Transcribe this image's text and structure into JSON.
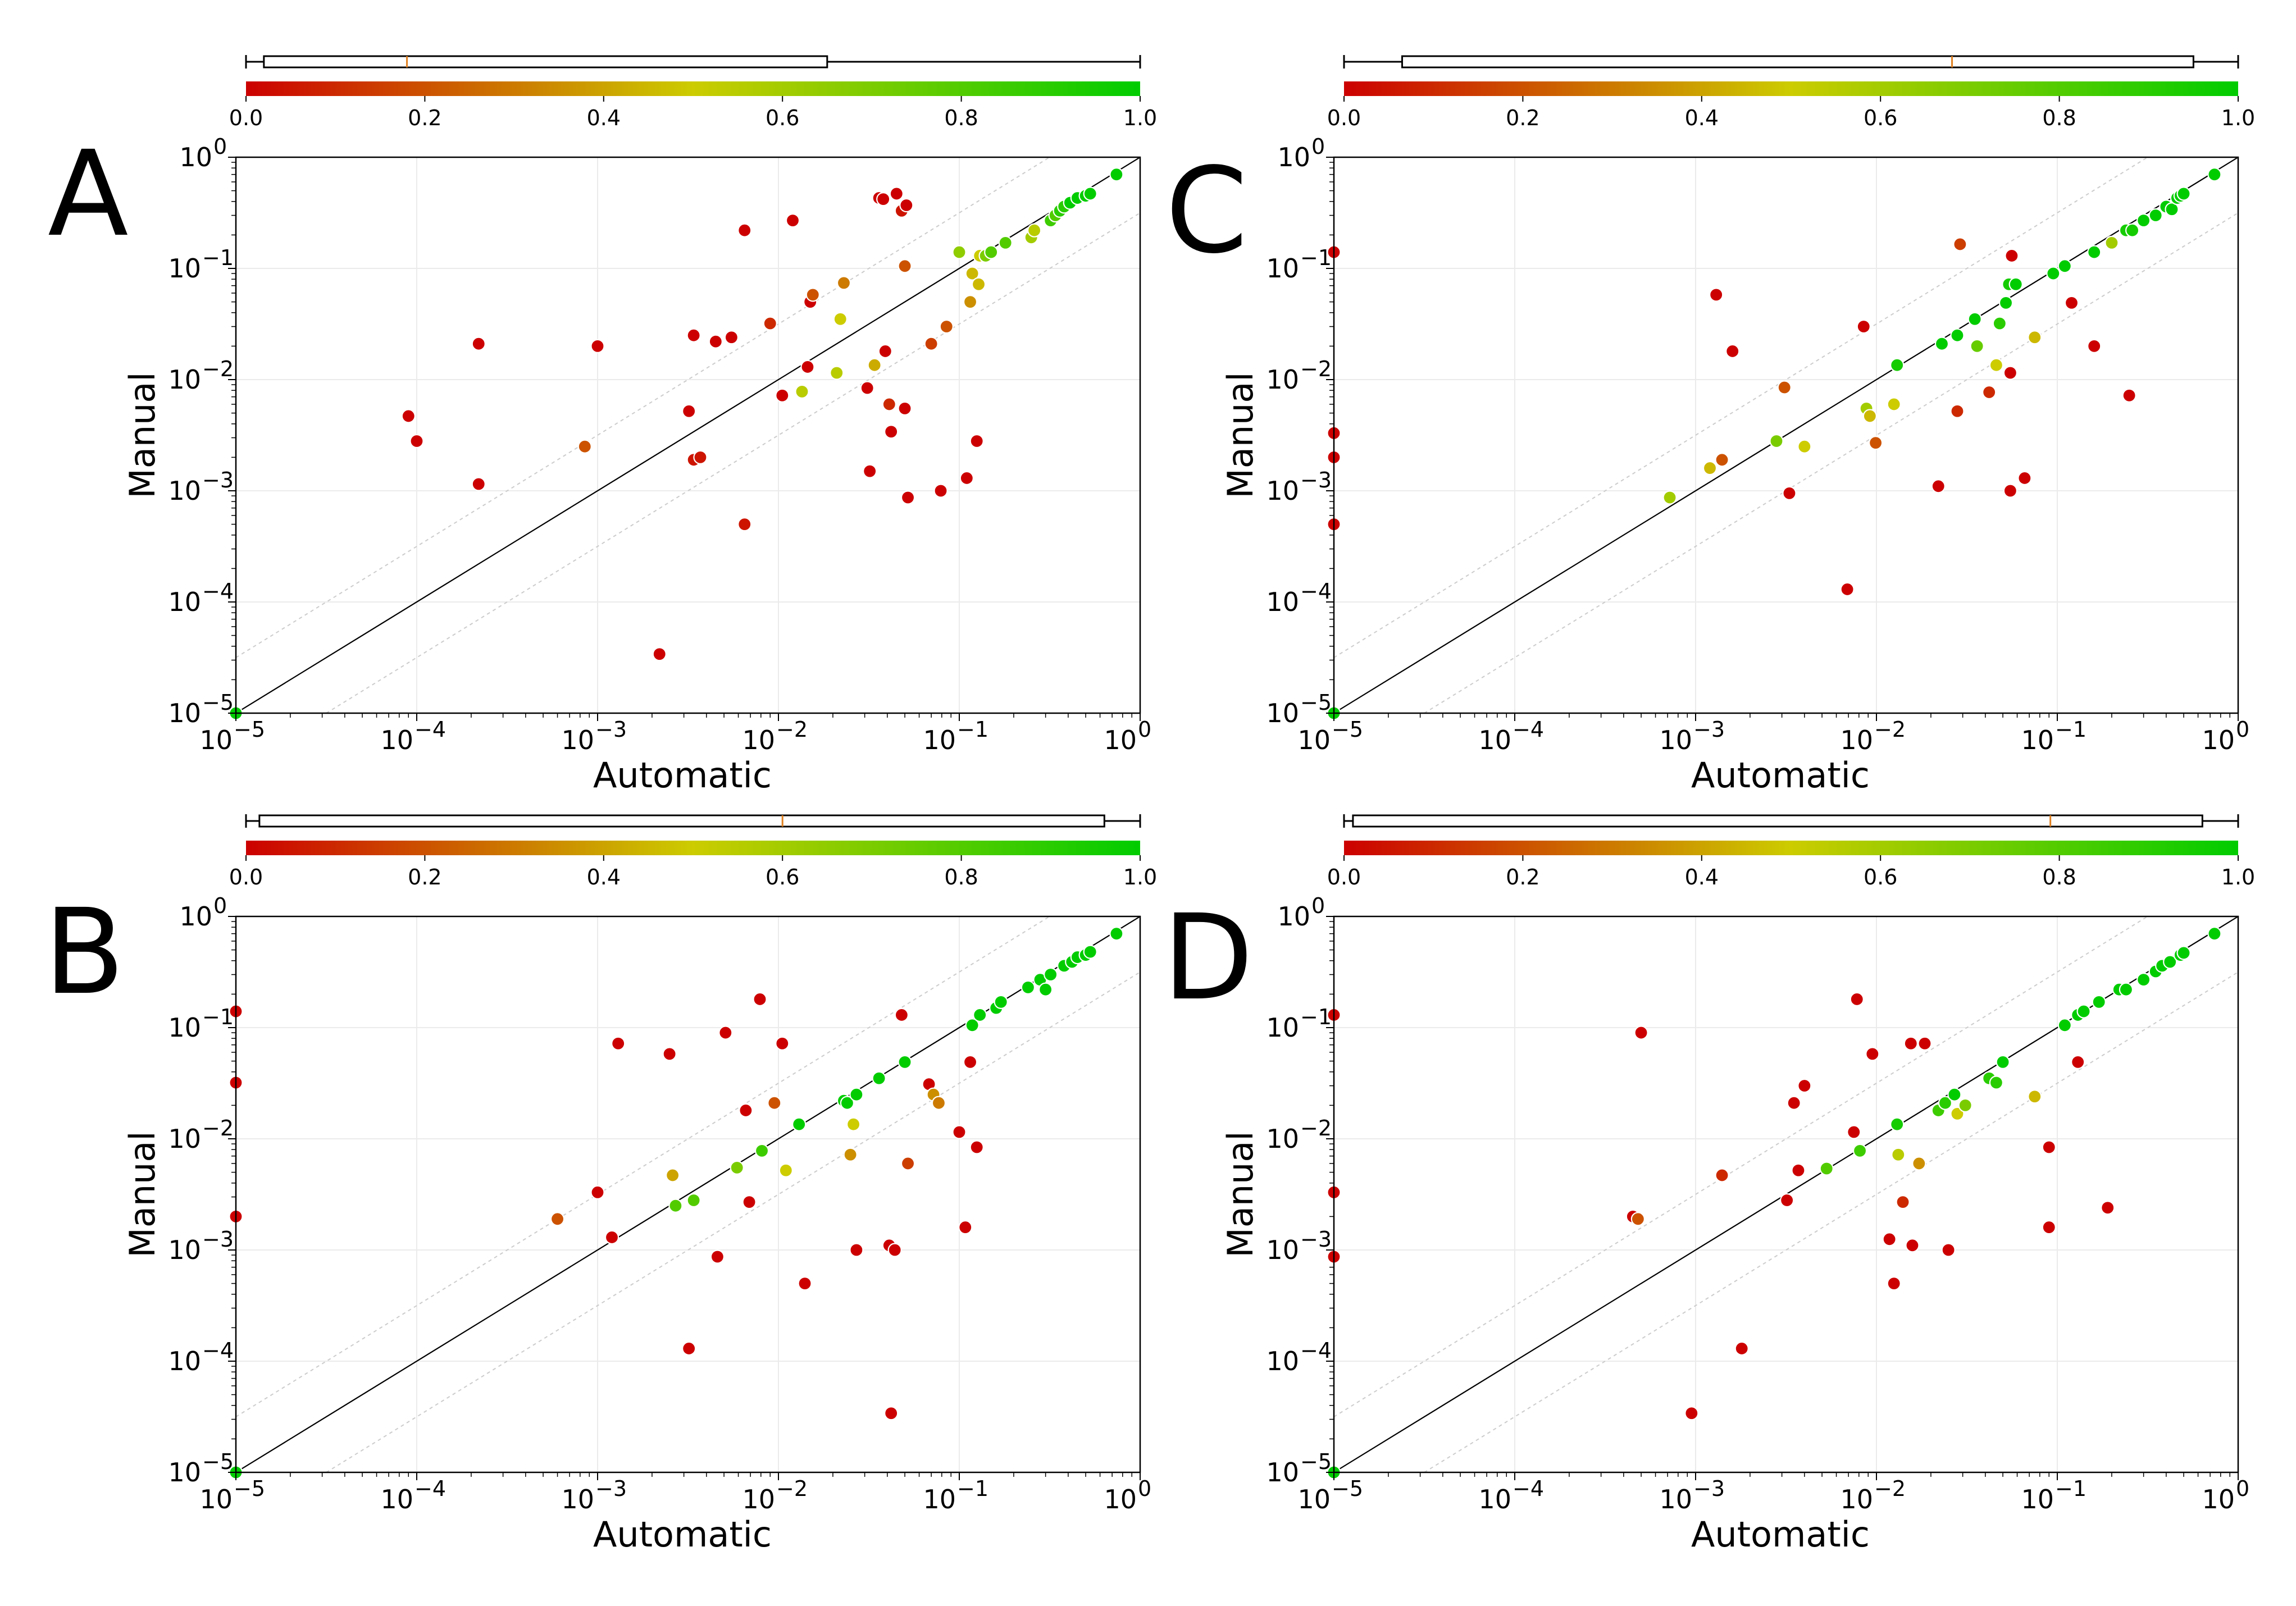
{
  "figure": {
    "xlabel": "Automatic",
    "ylabel": "Manual",
    "colorbar_ticks": [
      "0.0",
      "0.2",
      "0.4",
      "0.6",
      "0.8",
      "1.0"
    ],
    "axis_tick_labels": [
      "10",
      "10",
      "10",
      "10",
      "10",
      "10"
    ],
    "axis_tick_exponents": [
      "−5",
      "−4",
      "−3",
      "−2",
      "−1",
      "0"
    ],
    "colormap": [
      "#cc0000",
      "#cccc00",
      "#00cc00"
    ]
  },
  "chart_data": [
    {
      "panel": "A",
      "type": "scatter",
      "xlabel": "Automatic",
      "ylabel": "Manual",
      "xscale": "log",
      "yscale": "log",
      "xlim": [
        1e-05,
        1
      ],
      "ylim": [
        1e-05,
        1
      ],
      "reference_lines": [
        "y=x",
        "y=3.16x",
        "y=0.316x"
      ],
      "colorbar": {
        "range": [
          0,
          1
        ],
        "box": {
          "whisker_low": 0.0,
          "q1": 0.02,
          "median": 0.18,
          "q3": 0.65,
          "whisker_high": 1.0
        }
      },
      "points": [
        [
          1e-05,
          1e-05,
          1.0
        ],
        [
          9e-05,
          0.0047,
          0.0
        ],
        [
          0.0001,
          0.0028,
          0.0
        ],
        [
          0.00022,
          0.021,
          0.0
        ],
        [
          0.00022,
          0.00115,
          0.0
        ],
        [
          0.00085,
          0.0025,
          0.2
        ],
        [
          0.001,
          0.02,
          0.0
        ],
        [
          0.0032,
          0.0052,
          0.0
        ],
        [
          0.0034,
          0.025,
          0.0
        ],
        [
          0.0034,
          0.0019,
          0.05
        ],
        [
          0.0037,
          0.002,
          0.05
        ],
        [
          0.0045,
          0.022,
          0.0
        ],
        [
          0.0055,
          0.024,
          0.0
        ],
        [
          0.0065,
          0.22,
          0.0
        ],
        [
          0.0065,
          0.0005,
          0.05
        ],
        [
          0.0022,
          3.4e-05,
          0.0
        ],
        [
          0.009,
          0.032,
          0.1
        ],
        [
          0.0105,
          0.0072,
          0.0
        ],
        [
          0.012,
          0.27,
          0.0
        ],
        [
          0.0135,
          0.0078,
          0.55
        ],
        [
          0.0145,
          0.013,
          0.0
        ],
        [
          0.015,
          0.05,
          0.0
        ],
        [
          0.0155,
          0.058,
          0.2
        ],
        [
          0.021,
          0.0115,
          0.55
        ],
        [
          0.022,
          0.035,
          0.5
        ],
        [
          0.023,
          0.074,
          0.3
        ],
        [
          0.031,
          0.0084,
          0.0
        ],
        [
          0.032,
          0.0015,
          0.0
        ],
        [
          0.034,
          0.0135,
          0.42
        ],
        [
          0.036,
          0.43,
          0.0
        ],
        [
          0.038,
          0.42,
          0.0
        ],
        [
          0.039,
          0.018,
          0.0
        ],
        [
          0.041,
          0.006,
          0.1
        ],
        [
          0.042,
          0.0034,
          0.0
        ],
        [
          0.045,
          0.47,
          0.0
        ],
        [
          0.048,
          0.33,
          0.05
        ],
        [
          0.051,
          0.37,
          0.0
        ],
        [
          0.05,
          0.105,
          0.2
        ],
        [
          0.05,
          0.0055,
          0.0
        ],
        [
          0.052,
          0.00087,
          0.0
        ],
        [
          0.07,
          0.021,
          0.15
        ],
        [
          0.079,
          0.001,
          0.0
        ],
        [
          0.085,
          0.03,
          0.2
        ],
        [
          0.1,
          0.14,
          0.65
        ],
        [
          0.11,
          0.0013,
          0.0
        ],
        [
          0.115,
          0.05,
          0.35
        ],
        [
          0.118,
          0.09,
          0.45
        ],
        [
          0.125,
          0.0028,
          0.0
        ],
        [
          0.128,
          0.072,
          0.45
        ],
        [
          0.13,
          0.13,
          0.5
        ],
        [
          0.14,
          0.13,
          0.7
        ],
        [
          0.15,
          0.14,
          0.8
        ],
        [
          0.18,
          0.17,
          0.8
        ],
        [
          0.25,
          0.19,
          0.6
        ],
        [
          0.26,
          0.22,
          0.55
        ],
        [
          0.32,
          0.27,
          0.85
        ],
        [
          0.34,
          0.3,
          0.8
        ],
        [
          0.36,
          0.33,
          0.9
        ],
        [
          0.38,
          0.36,
          0.9
        ],
        [
          0.41,
          0.39,
          1.0
        ],
        [
          0.45,
          0.43,
          1.0
        ],
        [
          0.5,
          0.45,
          1.0
        ],
        [
          0.53,
          0.47,
          1.0
        ],
        [
          0.74,
          0.7,
          1.0
        ]
      ]
    },
    {
      "panel": "B",
      "type": "scatter",
      "xlabel": "Automatic",
      "ylabel": "Manual",
      "xscale": "log",
      "yscale": "log",
      "xlim": [
        1e-05,
        1
      ],
      "ylim": [
        1e-05,
        1
      ],
      "reference_lines": [
        "y=x",
        "y=3.16x",
        "y=0.316x"
      ],
      "colorbar": {
        "range": [
          0,
          1
        ],
        "box": {
          "whisker_low": 0.0,
          "q1": 0.015,
          "median": 0.6,
          "q3": 0.96,
          "whisker_high": 1.0
        }
      },
      "points": [
        [
          1e-05,
          1e-05,
          1.0
        ],
        [
          1e-05,
          0.14,
          0.0
        ],
        [
          1e-05,
          0.032,
          0.0
        ],
        [
          1e-05,
          0.002,
          0.0
        ],
        [
          0.0006,
          0.0019,
          0.2
        ],
        [
          0.001,
          0.0033,
          0.0
        ],
        [
          0.0012,
          0.0013,
          0.0
        ],
        [
          0.0013,
          0.072,
          0.0
        ],
        [
          0.0025,
          0.058,
          0.0
        ],
        [
          0.0026,
          0.0047,
          0.4
        ],
        [
          0.0027,
          0.0025,
          0.8
        ],
        [
          0.0032,
          0.00013,
          0.0
        ],
        [
          0.0034,
          0.0028,
          0.8
        ],
        [
          0.0046,
          0.00087,
          0.0
        ],
        [
          0.0051,
          0.09,
          0.0
        ],
        [
          0.0059,
          0.0055,
          0.7
        ],
        [
          0.0066,
          0.018,
          0.0
        ],
        [
          0.0069,
          0.0027,
          0.0
        ],
        [
          0.0079,
          0.18,
          0.0
        ],
        [
          0.0081,
          0.0078,
          0.85
        ],
        [
          0.0095,
          0.021,
          0.2
        ],
        [
          0.0105,
          0.072,
          0.0
        ],
        [
          0.011,
          0.0052,
          0.5
        ],
        [
          0.013,
          0.0135,
          1.0
        ],
        [
          0.014,
          0.0005,
          0.0
        ],
        [
          0.023,
          0.022,
          1.0
        ],
        [
          0.024,
          0.021,
          1.0
        ],
        [
          0.025,
          0.0072,
          0.35
        ],
        [
          0.026,
          0.0135,
          0.5
        ],
        [
          0.027,
          0.001,
          0.0
        ],
        [
          0.027,
          0.025,
          1.0
        ],
        [
          0.036,
          0.035,
          1.0
        ],
        [
          0.041,
          0.0011,
          0.0
        ],
        [
          0.042,
          3.4e-05,
          0.0
        ],
        [
          0.044,
          0.001,
          0.0
        ],
        [
          0.048,
          0.13,
          0.0
        ],
        [
          0.05,
          0.049,
          1.0
        ],
        [
          0.052,
          0.006,
          0.15
        ],
        [
          0.068,
          0.031,
          0.0
        ],
        [
          0.072,
          0.025,
          0.35
        ],
        [
          0.077,
          0.021,
          0.3
        ],
        [
          0.1,
          0.0115,
          0.0
        ],
        [
          0.108,
          0.0016,
          0.0
        ],
        [
          0.115,
          0.049,
          0.0
        ],
        [
          0.118,
          0.105,
          1.0
        ],
        [
          0.125,
          0.0084,
          0.0
        ],
        [
          0.13,
          0.13,
          1.0
        ],
        [
          0.16,
          0.15,
          1.0
        ],
        [
          0.17,
          0.17,
          1.0
        ],
        [
          0.24,
          0.23,
          1.0
        ],
        [
          0.28,
          0.27,
          1.0
        ],
        [
          0.3,
          0.22,
          1.0
        ],
        [
          0.32,
          0.3,
          1.0
        ],
        [
          0.38,
          0.36,
          1.0
        ],
        [
          0.42,
          0.39,
          1.0
        ],
        [
          0.45,
          0.43,
          1.0
        ],
        [
          0.5,
          0.45,
          1.0
        ],
        [
          0.53,
          0.48,
          1.0
        ],
        [
          0.74,
          0.7,
          1.0
        ]
      ]
    },
    {
      "panel": "C",
      "type": "scatter",
      "xlabel": "Automatic",
      "ylabel": "Manual",
      "xscale": "log",
      "yscale": "log",
      "xlim": [
        1e-05,
        1
      ],
      "ylim": [
        1e-05,
        1
      ],
      "reference_lines": [
        "y=x",
        "y=3.16x",
        "y=0.316x"
      ],
      "colorbar": {
        "range": [
          0,
          1
        ],
        "box": {
          "whisker_low": 0.0,
          "q1": 0.065,
          "median": 0.68,
          "q3": 0.95,
          "whisker_high": 1.0
        }
      },
      "points": [
        [
          1e-05,
          1e-05,
          1.0
        ],
        [
          1e-05,
          0.14,
          0.0
        ],
        [
          1e-05,
          0.0033,
          0.0
        ],
        [
          1e-05,
          0.002,
          0.0
        ],
        [
          1e-05,
          0.0005,
          0.0
        ],
        [
          0.00072,
          0.00087,
          0.6
        ],
        [
          0.0012,
          0.0016,
          0.45
        ],
        [
          0.0013,
          0.058,
          0.0
        ],
        [
          0.0014,
          0.0019,
          0.2
        ],
        [
          0.0016,
          0.018,
          0.0
        ],
        [
          0.0028,
          0.0028,
          0.7
        ],
        [
          0.0031,
          0.0085,
          0.2
        ],
        [
          0.0033,
          0.00095,
          0.0
        ],
        [
          0.004,
          0.0025,
          0.5
        ],
        [
          0.0069,
          0.00013,
          0.0
        ],
        [
          0.0085,
          0.03,
          0.0
        ],
        [
          0.0088,
          0.0055,
          0.6
        ],
        [
          0.0092,
          0.0047,
          0.45
        ],
        [
          0.0099,
          0.0027,
          0.2
        ],
        [
          0.0125,
          0.006,
          0.5
        ],
        [
          0.013,
          0.0135,
          0.95
        ],
        [
          0.022,
          0.0011,
          0.0
        ],
        [
          0.023,
          0.021,
          1.0
        ],
        [
          0.028,
          0.025,
          1.0
        ],
        [
          0.028,
          0.0052,
          0.1
        ],
        [
          0.029,
          0.165,
          0.15
        ],
        [
          0.035,
          0.035,
          1.0
        ],
        [
          0.036,
          0.02,
          0.75
        ],
        [
          0.042,
          0.0077,
          0.1
        ],
        [
          0.046,
          0.0135,
          0.5
        ],
        [
          0.048,
          0.032,
          0.9
        ],
        [
          0.052,
          0.049,
          1.0
        ],
        [
          0.054,
          0.072,
          0.95
        ],
        [
          0.055,
          0.0115,
          0.0
        ],
        [
          0.055,
          0.001,
          0.0
        ],
        [
          0.056,
          0.13,
          0.0
        ],
        [
          0.059,
          0.072,
          1.0
        ],
        [
          0.066,
          0.0013,
          0.0
        ],
        [
          0.075,
          0.024,
          0.45
        ],
        [
          0.095,
          0.09,
          1.0
        ],
        [
          0.11,
          0.105,
          1.0
        ],
        [
          0.12,
          0.049,
          0.0
        ],
        [
          0.16,
          0.14,
          1.0
        ],
        [
          0.16,
          0.02,
          0.0
        ],
        [
          0.2,
          0.17,
          0.6
        ],
        [
          0.24,
          0.22,
          0.95
        ],
        [
          0.25,
          0.0072,
          0.0
        ],
        [
          0.26,
          0.22,
          0.95
        ],
        [
          0.3,
          0.27,
          1.0
        ],
        [
          0.35,
          0.3,
          1.0
        ],
        [
          0.4,
          0.36,
          1.0
        ],
        [
          0.43,
          0.34,
          1.0
        ],
        [
          0.46,
          0.43,
          1.0
        ],
        [
          0.48,
          0.45,
          1.0
        ],
        [
          0.5,
          0.47,
          1.0
        ],
        [
          0.74,
          0.7,
          1.0
        ]
      ]
    },
    {
      "panel": "D",
      "type": "scatter",
      "xlabel": "Automatic",
      "ylabel": "Manual",
      "xscale": "log",
      "yscale": "log",
      "xlim": [
        1e-05,
        1
      ],
      "ylim": [
        1e-05,
        1
      ],
      "reference_lines": [
        "y=x",
        "y=3.16x",
        "y=0.316x"
      ],
      "colorbar": {
        "range": [
          0,
          1
        ],
        "box": {
          "whisker_low": 0.0,
          "q1": 0.01,
          "median": 0.79,
          "q3": 0.96,
          "whisker_high": 1.0
        }
      },
      "points": [
        [
          1e-05,
          1e-05,
          1.0
        ],
        [
          1e-05,
          0.13,
          0.0
        ],
        [
          1e-05,
          0.0033,
          0.0
        ],
        [
          1e-05,
          0.00087,
          0.0
        ],
        [
          0.00045,
          0.002,
          0.0
        ],
        [
          0.00048,
          0.0019,
          0.2
        ],
        [
          0.0005,
          0.09,
          0.0
        ],
        [
          0.00095,
          3.4e-05,
          0.0
        ],
        [
          0.0014,
          0.0047,
          0.1
        ],
        [
          0.0018,
          0.00013,
          0.0
        ],
        [
          0.0032,
          0.0028,
          0.0
        ],
        [
          0.0035,
          0.021,
          0.0
        ],
        [
          0.0037,
          0.0052,
          0.0
        ],
        [
          0.004,
          0.03,
          0.0
        ],
        [
          0.0053,
          0.0054,
          0.8
        ],
        [
          0.0075,
          0.0115,
          0.0
        ],
        [
          0.0078,
          0.18,
          0.0
        ],
        [
          0.0081,
          0.0078,
          0.85
        ],
        [
          0.0095,
          0.058,
          0.0
        ],
        [
          0.0118,
          0.00125,
          0.0
        ],
        [
          0.0125,
          0.0005,
          0.0
        ],
        [
          0.013,
          0.0135,
          0.95
        ],
        [
          0.0132,
          0.0072,
          0.55
        ],
        [
          0.014,
          0.0027,
          0.1
        ],
        [
          0.0155,
          0.072,
          0.0
        ],
        [
          0.0158,
          0.0011,
          0.0
        ],
        [
          0.0172,
          0.006,
          0.35
        ],
        [
          0.0185,
          0.072,
          0.0
        ],
        [
          0.022,
          0.018,
          0.85
        ],
        [
          0.024,
          0.021,
          0.9
        ],
        [
          0.025,
          0.001,
          0.0
        ],
        [
          0.027,
          0.025,
          1.0
        ],
        [
          0.028,
          0.0168,
          0.5
        ],
        [
          0.031,
          0.02,
          0.7
        ],
        [
          0.042,
          0.035,
          0.9
        ],
        [
          0.046,
          0.032,
          0.9
        ],
        [
          0.05,
          0.049,
          1.0
        ],
        [
          0.075,
          0.024,
          0.45
        ],
        [
          0.09,
          0.0084,
          0.0
        ],
        [
          0.09,
          0.0016,
          0.0
        ],
        [
          0.11,
          0.105,
          1.0
        ],
        [
          0.13,
          0.049,
          0.0
        ],
        [
          0.13,
          0.13,
          1.0
        ],
        [
          0.14,
          0.14,
          1.0
        ],
        [
          0.17,
          0.17,
          1.0
        ],
        [
          0.19,
          0.0024,
          0.0
        ],
        [
          0.22,
          0.22,
          1.0
        ],
        [
          0.24,
          0.22,
          1.0
        ],
        [
          0.3,
          0.27,
          1.0
        ],
        [
          0.35,
          0.32,
          1.0
        ],
        [
          0.38,
          0.36,
          1.0
        ],
        [
          0.42,
          0.39,
          1.0
        ],
        [
          0.48,
          0.45,
          1.0
        ],
        [
          0.5,
          0.47,
          1.0
        ],
        [
          0.74,
          0.7,
          1.0
        ]
      ]
    }
  ]
}
